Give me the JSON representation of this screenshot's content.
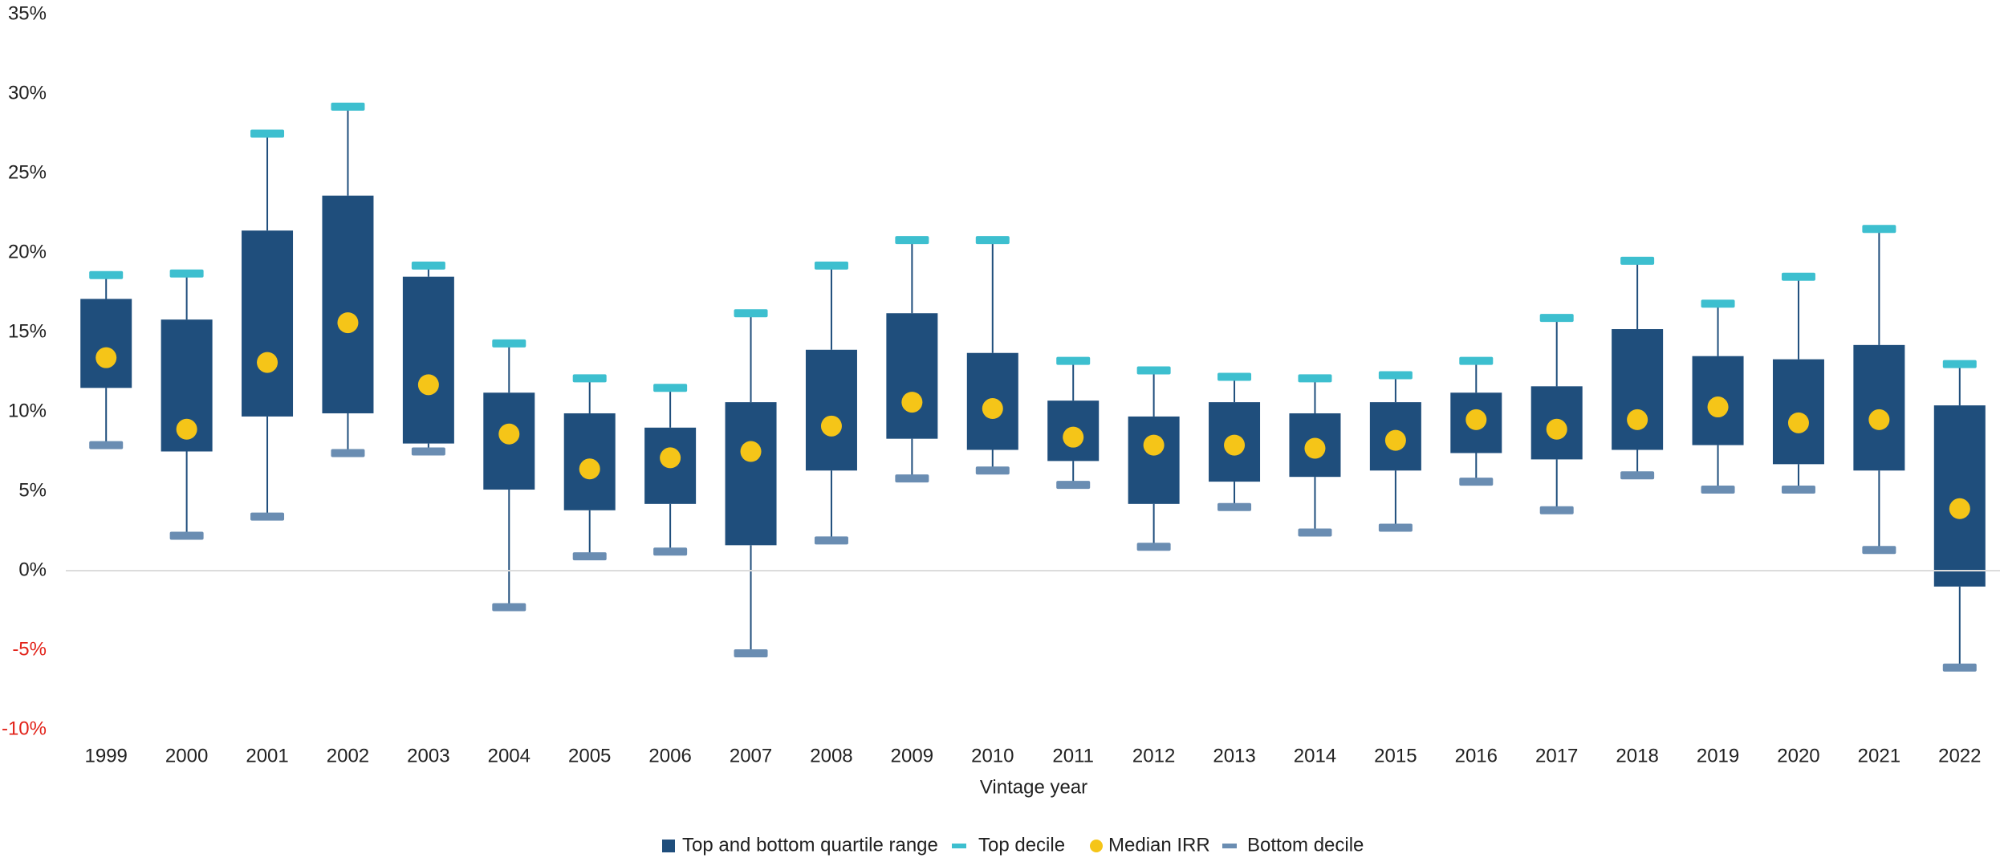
{
  "chart_data": {
    "type": "box",
    "x_label": "Vintage year",
    "categories": [
      "1999",
      "2000",
      "2001",
      "2002",
      "2003",
      "2004",
      "2005",
      "2006",
      "2007",
      "2008",
      "2009",
      "2010",
      "2011",
      "2012",
      "2013",
      "2014",
      "2015",
      "2016",
      "2017",
      "2018",
      "2019",
      "2020",
      "2021",
      "2022"
    ],
    "series": [
      {
        "name": "Top and bottom quartile range",
        "color": "#1f4e7c",
        "q1": [
          11.5,
          7.5,
          9.7,
          9.9,
          8.0,
          5.1,
          3.8,
          4.2,
          1.6,
          6.3,
          8.3,
          7.6,
          6.9,
          4.2,
          5.6,
          5.9,
          6.3,
          7.4,
          7.0,
          7.6,
          7.9,
          6.7,
          6.3,
          -1.0
        ],
        "q3": [
          17.1,
          15.8,
          21.4,
          23.6,
          18.5,
          11.2,
          9.9,
          9.0,
          10.6,
          13.9,
          16.2,
          13.7,
          10.7,
          9.7,
          10.6,
          9.9,
          10.6,
          11.2,
          11.6,
          15.2,
          13.5,
          13.3,
          14.2,
          10.4
        ]
      },
      {
        "name": "Top decile",
        "color": "#3dbfcf",
        "values": [
          18.6,
          18.7,
          27.5,
          29.2,
          19.2,
          14.3,
          12.1,
          11.5,
          16.2,
          19.2,
          20.8,
          20.8,
          13.2,
          12.6,
          12.2,
          12.1,
          12.3,
          13.2,
          15.9,
          19.5,
          16.8,
          18.5,
          21.5,
          13.0
        ]
      },
      {
        "name": "Median IRR",
        "color": "#f5c518",
        "values": [
          13.4,
          8.9,
          13.1,
          15.6,
          11.7,
          8.6,
          6.4,
          7.1,
          7.5,
          9.1,
          10.6,
          10.2,
          8.4,
          7.9,
          7.9,
          7.7,
          8.2,
          9.5,
          8.9,
          9.5,
          10.3,
          9.3,
          9.5,
          3.9
        ]
      },
      {
        "name": "Bottom decile",
        "color": "#6a8db2",
        "values": [
          7.9,
          2.2,
          3.4,
          7.4,
          7.5,
          -2.3,
          0.9,
          1.2,
          -5.2,
          1.9,
          5.8,
          6.3,
          5.4,
          1.5,
          4.0,
          2.4,
          2.7,
          5.6,
          3.8,
          6.0,
          5.1,
          5.1,
          1.3,
          -6.1
        ]
      }
    ],
    "ylim": [
      -10,
      35
    ],
    "yticks": [
      {
        "value": -10,
        "label": "-10%"
      },
      {
        "value": -5,
        "label": "-5%"
      },
      {
        "value": 0,
        "label": "0%"
      },
      {
        "value": 5,
        "label": "5%"
      },
      {
        "value": 10,
        "label": "10%"
      },
      {
        "value": 15,
        "label": "15%"
      },
      {
        "value": 20,
        "label": "20%"
      },
      {
        "value": 25,
        "label": "25%"
      },
      {
        "value": 30,
        "label": "30%"
      },
      {
        "value": 35,
        "label": "35%"
      }
    ],
    "negative_tick_color": "#e2231a",
    "zero_line": true,
    "legend": "bottom"
  }
}
